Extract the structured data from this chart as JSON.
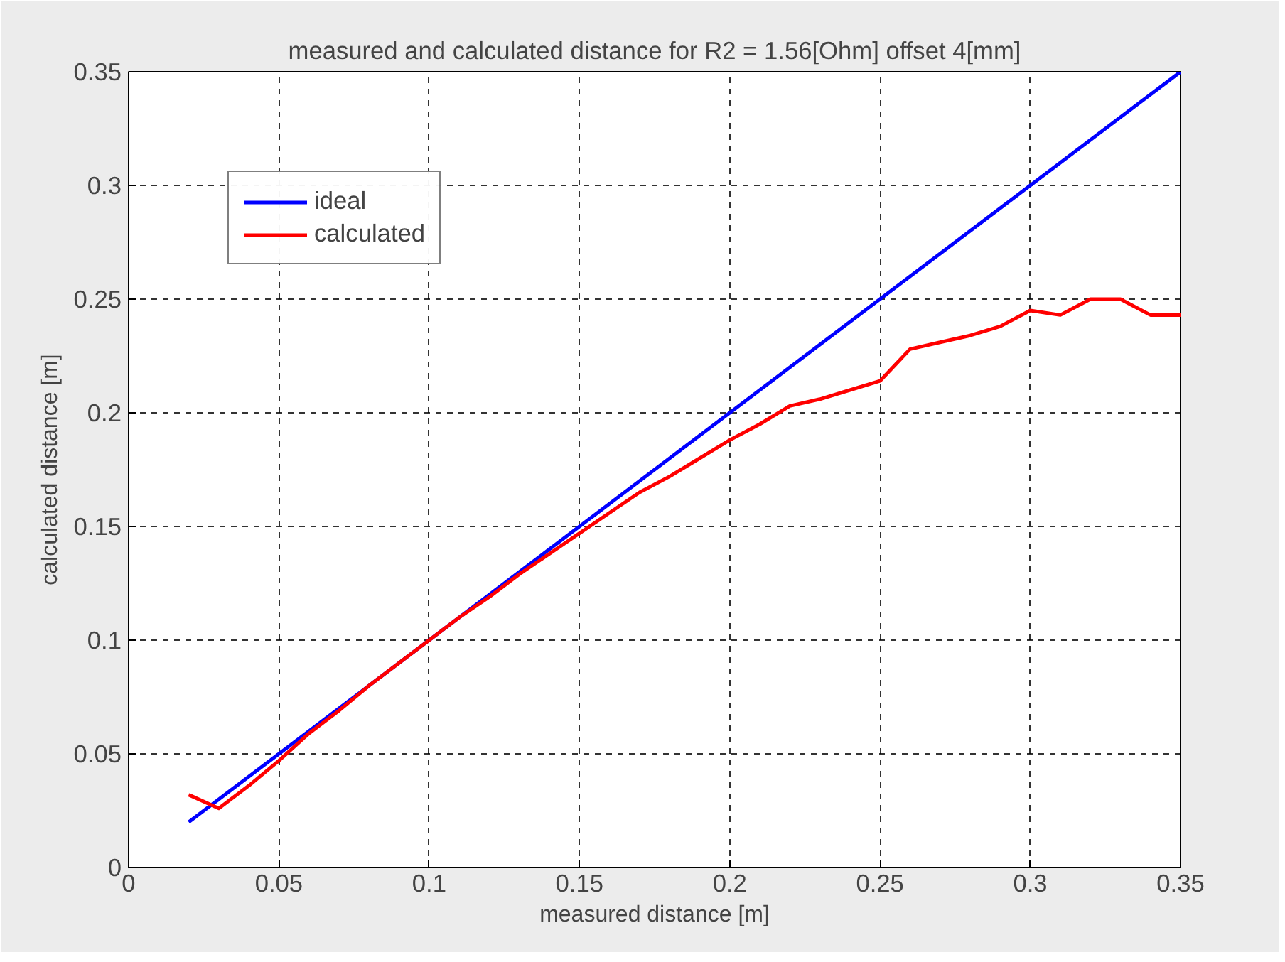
{
  "chart_data": {
    "type": "line",
    "title": "measured and calculated distance for R2 = 1.56[Ohm] offset 4[mm]",
    "xlabel": "measured distance [m]",
    "ylabel": "calculated distance [m]",
    "x": [
      0.02,
      0.03,
      0.04,
      0.05,
      0.06,
      0.07,
      0.08,
      0.09,
      0.1,
      0.11,
      0.12,
      0.13,
      0.14,
      0.15,
      0.16,
      0.17,
      0.18,
      0.19,
      0.2,
      0.21,
      0.22,
      0.23,
      0.24,
      0.25,
      0.26,
      0.27,
      0.28,
      0.29,
      0.3,
      0.31,
      0.32,
      0.33,
      0.34,
      0.35
    ],
    "series": [
      {
        "name": "ideal",
        "color": "#0000ff",
        "values": [
          0.02,
          0.03,
          0.04,
          0.05,
          0.06,
          0.07,
          0.08,
          0.09,
          0.1,
          0.11,
          0.12,
          0.13,
          0.14,
          0.15,
          0.16,
          0.17,
          0.18,
          0.19,
          0.2,
          0.21,
          0.22,
          0.23,
          0.24,
          0.25,
          0.26,
          0.27,
          0.28,
          0.29,
          0.3,
          0.31,
          0.32,
          0.33,
          0.34,
          0.35
        ]
      },
      {
        "name": "calculated",
        "color": "#ff0000",
        "values": [
          0.032,
          0.026,
          0.036,
          0.047,
          0.059,
          0.069,
          0.08,
          0.09,
          0.1,
          0.11,
          0.119,
          0.129,
          0.138,
          0.147,
          0.156,
          0.165,
          0.172,
          0.18,
          0.188,
          0.195,
          0.203,
          0.206,
          0.21,
          0.214,
          0.228,
          0.231,
          0.234,
          0.238,
          0.245,
          0.243,
          0.25,
          0.25,
          0.243,
          0.243
        ]
      }
    ],
    "xlim": [
      0,
      0.35
    ],
    "ylim": [
      0,
      0.35
    ],
    "xticks": [
      0,
      0.05,
      0.1,
      0.15,
      0.2,
      0.25,
      0.3,
      0.35
    ],
    "yticks": [
      0,
      0.05,
      0.1,
      0.15,
      0.2,
      0.25,
      0.3,
      0.35
    ],
    "grid": true,
    "legend": "top left",
    "line_style": "solid",
    "marker": "none"
  }
}
